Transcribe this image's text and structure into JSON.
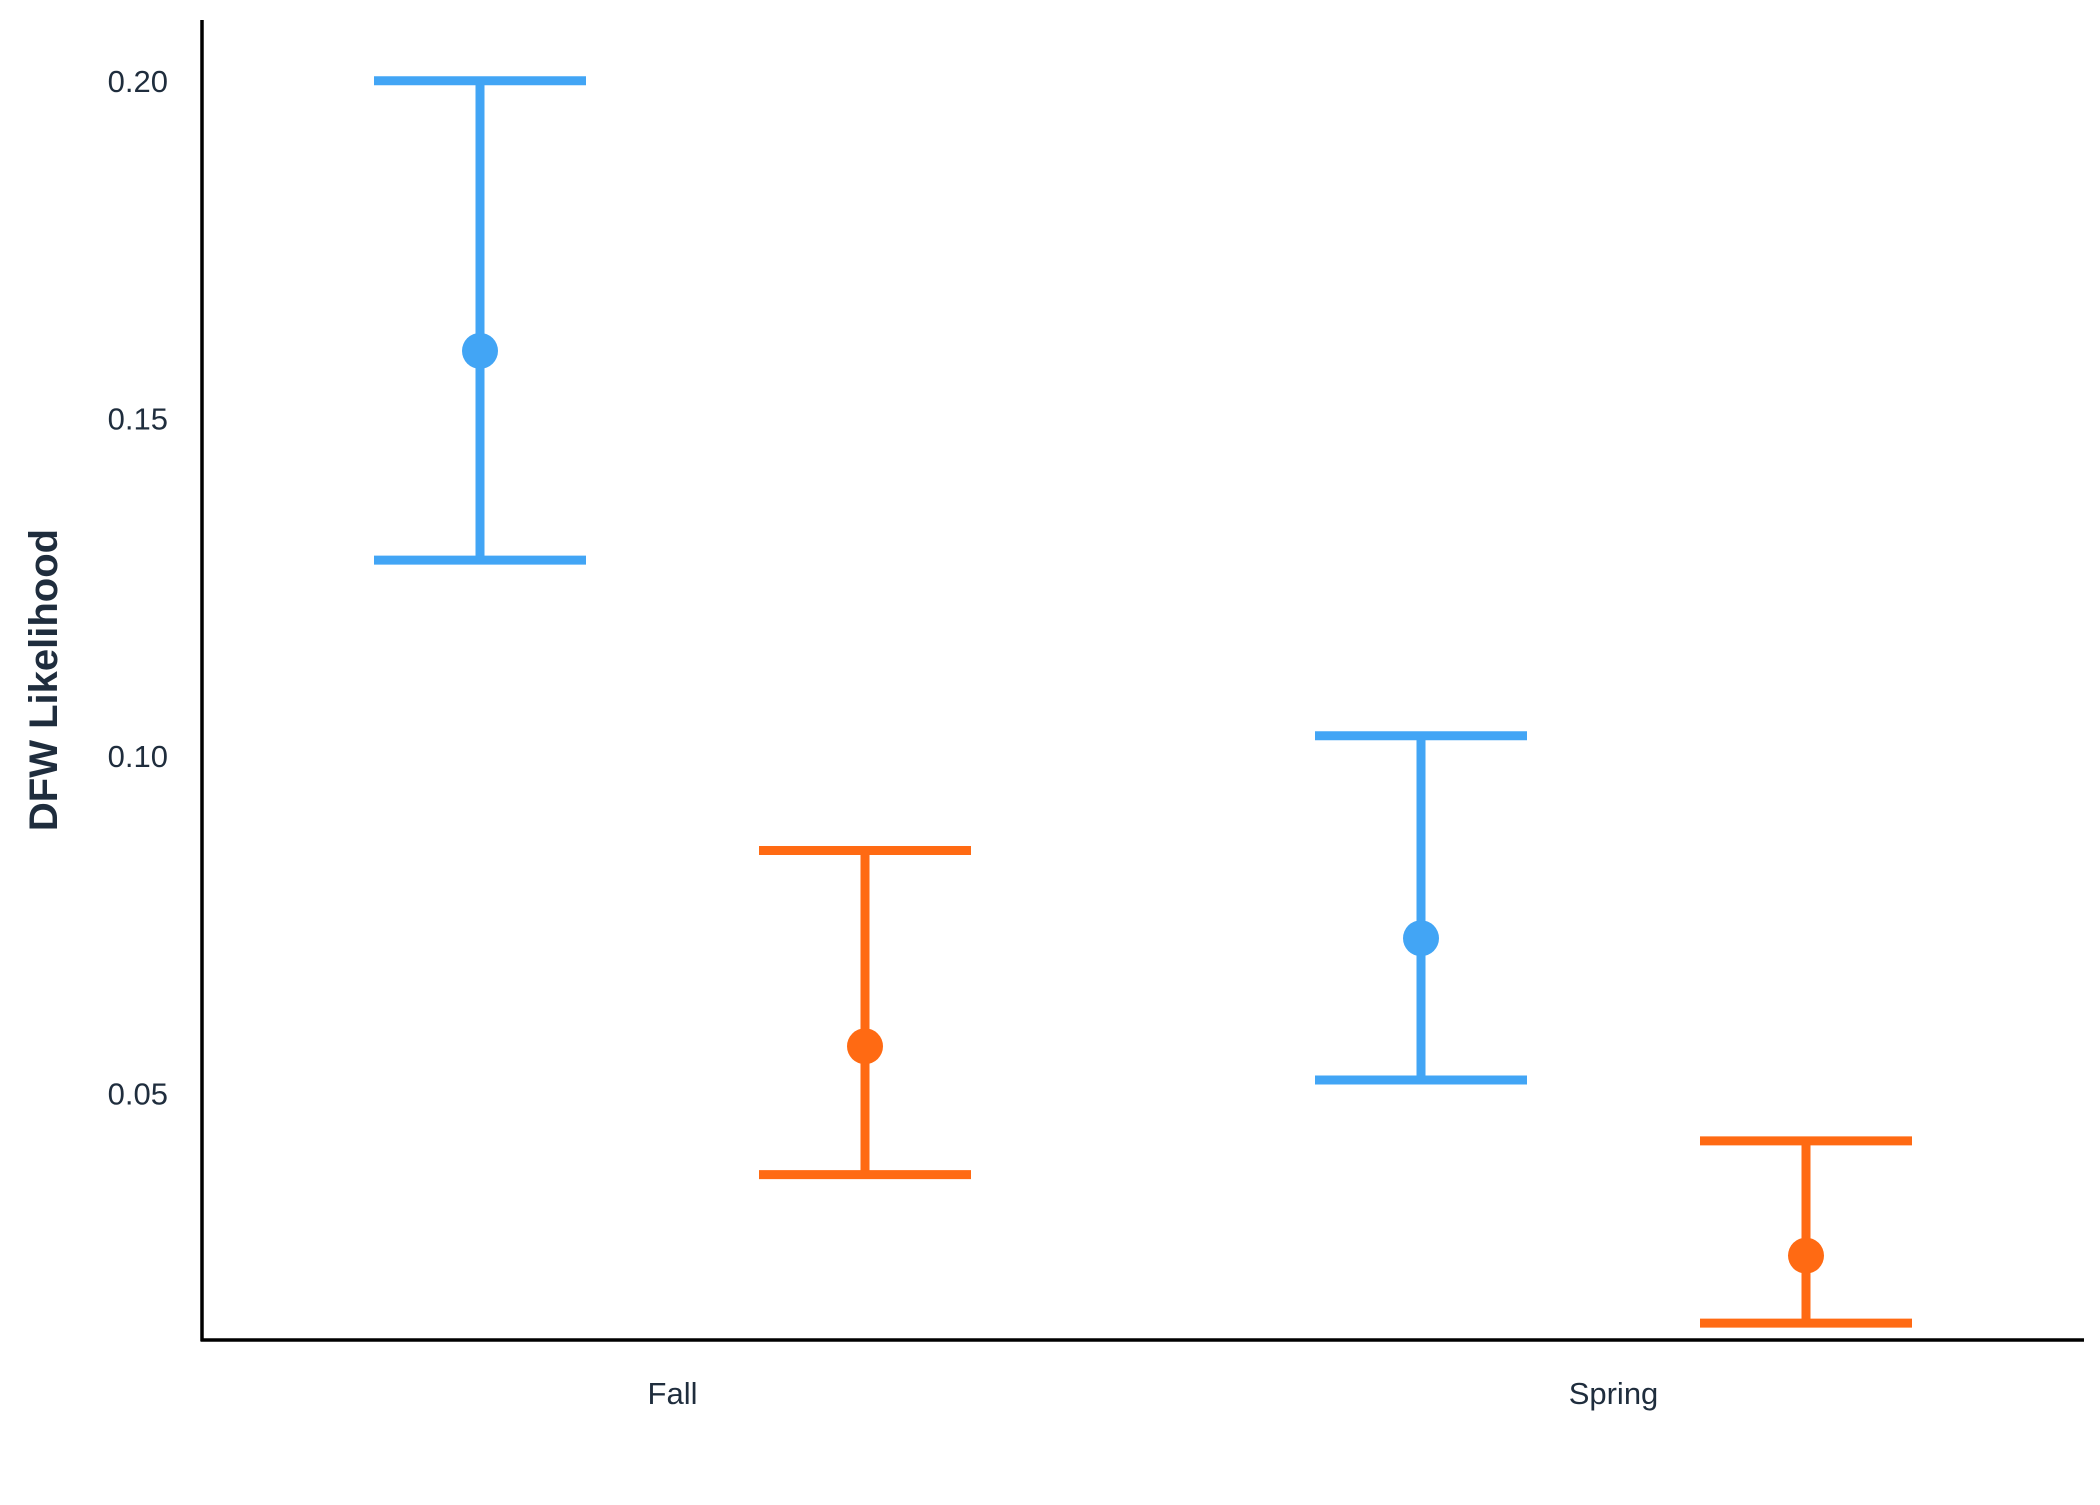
{
  "chart_data": {
    "type": "errorbar",
    "title": "",
    "xlabel": "",
    "ylabel": "DFW Likelihood",
    "ylim": [
      0.0135,
      0.209
    ],
    "yticks": [
      0.05,
      0.1,
      0.15,
      0.2
    ],
    "ytick_labels": [
      "0.05",
      "0.10",
      "0.15",
      "0.20"
    ],
    "categories": [
      "Fall",
      "Spring"
    ],
    "legend": "none",
    "grid": false,
    "series": [
      {
        "color": "#42a5f5",
        "points": [
          {
            "category": "Fall",
            "value": 0.16,
            "lower": 0.129,
            "upper": 0.2
          },
          {
            "category": "Spring",
            "value": 0.073,
            "lower": 0.052,
            "upper": 0.103
          }
        ]
      },
      {
        "color": "#ff6a13",
        "points": [
          {
            "category": "Fall",
            "value": 0.057,
            "lower": 0.038,
            "upper": 0.086
          },
          {
            "category": "Spring",
            "value": 0.026,
            "lower": 0.016,
            "upper": 0.043
          }
        ]
      }
    ]
  }
}
